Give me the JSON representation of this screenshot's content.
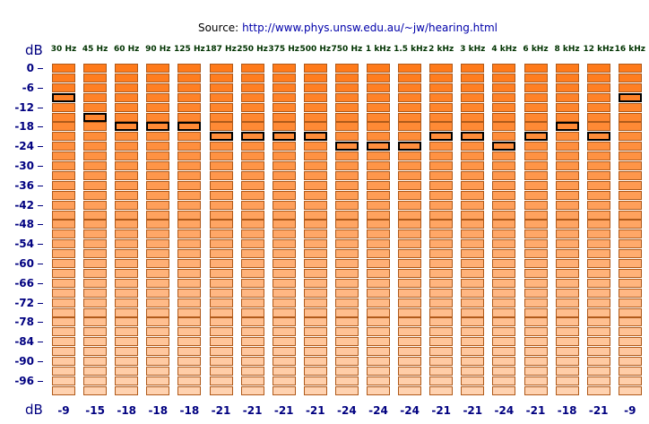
{
  "source": {
    "prefix": "Source:",
    "url": "http://www.phys.unsw.edu.au/~jw/hearing.html"
  },
  "top_unit_label": "dB",
  "bottom_unit_label": "dB",
  "db_ticks": [
    "0",
    "-6",
    "-12",
    "-18",
    "-24",
    "-30",
    "-36",
    "-42",
    "-48",
    "-54",
    "-60",
    "-66",
    "-72",
    "-78",
    "-84",
    "-90",
    "-96"
  ],
  "frequencies": [
    "30 Hz",
    "45 Hz",
    "60 Hz",
    "90 Hz",
    "125 Hz",
    "187 Hz",
    "250 Hz",
    "375 Hz",
    "500 Hz",
    "750 Hz",
    "1 kHz",
    "1.5 kHz",
    "2 kHz",
    "3 kHz",
    "4 kHz",
    "6 kHz",
    "8 kHz",
    "12 kHz",
    "16 kHz"
  ],
  "thresholds": [
    "-9",
    "-15",
    "-18",
    "-18",
    "-18",
    "-21",
    "-21",
    "-21",
    "-21",
    "-24",
    "-24",
    "-24",
    "-21",
    "-21",
    "-24",
    "-21",
    "-18",
    "-21",
    "-9"
  ],
  "levels_count": 34,
  "level_step_db": -3,
  "colors": {
    "cell_loud": "#ff7a1a",
    "cell_quiet": "#ffd2b0",
    "selected_border": "#000000",
    "axis_text": "#000080"
  }
}
